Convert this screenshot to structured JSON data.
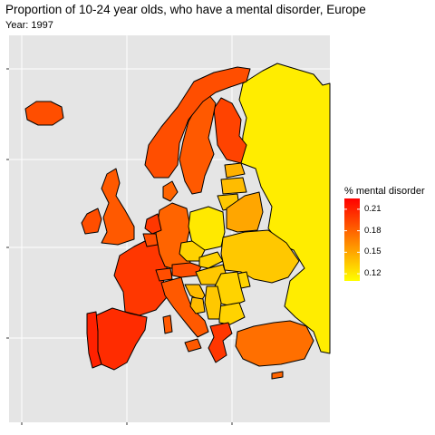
{
  "title": "Proportion of 10-24 year olds, who have a mental disorder, Europe",
  "subtitle": "Year: 1997",
  "legend": {
    "title": "% mental disorder",
    "min": 0.11,
    "max": 0.225,
    "ticks": [
      "0.21",
      "0.18",
      "0.15",
      "0.12"
    ],
    "tick_values": [
      0.21,
      0.18,
      0.15,
      0.12
    ],
    "colors": {
      "low": "#ffff00",
      "high": "#ff0000"
    }
  },
  "map_data": {
    "variable": "% mental disorder",
    "year": 1997,
    "regions": [
      {
        "name": "Russia",
        "value": 0.118
      },
      {
        "name": "Finland",
        "value": 0.195
      },
      {
        "name": "Sweden",
        "value": 0.185
      },
      {
        "name": "Norway",
        "value": 0.19
      },
      {
        "name": "Iceland",
        "value": 0.19
      },
      {
        "name": "Denmark",
        "value": 0.18
      },
      {
        "name": "United Kingdom",
        "value": 0.185
      },
      {
        "name": "Ireland",
        "value": 0.19
      },
      {
        "name": "France",
        "value": 0.2
      },
      {
        "name": "Spain",
        "value": 0.205
      },
      {
        "name": "Portugal",
        "value": 0.21
      },
      {
        "name": "Germany",
        "value": 0.18
      },
      {
        "name": "Netherlands",
        "value": 0.2
      },
      {
        "name": "Belgium",
        "value": 0.19
      },
      {
        "name": "Switzerland",
        "value": 0.19
      },
      {
        "name": "Austria",
        "value": 0.19
      },
      {
        "name": "Italy",
        "value": 0.185
      },
      {
        "name": "Poland",
        "value": 0.12
      },
      {
        "name": "Czechia",
        "value": 0.13
      },
      {
        "name": "Slovakia",
        "value": 0.13
      },
      {
        "name": "Hungary",
        "value": 0.135
      },
      {
        "name": "Estonia",
        "value": 0.145
      },
      {
        "name": "Latvia",
        "value": 0.14
      },
      {
        "name": "Lithuania",
        "value": 0.135
      },
      {
        "name": "Belarus",
        "value": 0.15
      },
      {
        "name": "Ukraine",
        "value": 0.135
      },
      {
        "name": "Moldova",
        "value": 0.13
      },
      {
        "name": "Romania",
        "value": 0.13
      },
      {
        "name": "Bulgaria",
        "value": 0.13
      },
      {
        "name": "Serbia",
        "value": 0.135
      },
      {
        "name": "Croatia",
        "value": 0.14
      },
      {
        "name": "Bosnia and Herzegovina",
        "value": 0.14
      },
      {
        "name": "Greece",
        "value": 0.2
      },
      {
        "name": "Turkey",
        "value": 0.175
      },
      {
        "name": "Cyprus",
        "value": 0.18
      }
    ]
  }
}
